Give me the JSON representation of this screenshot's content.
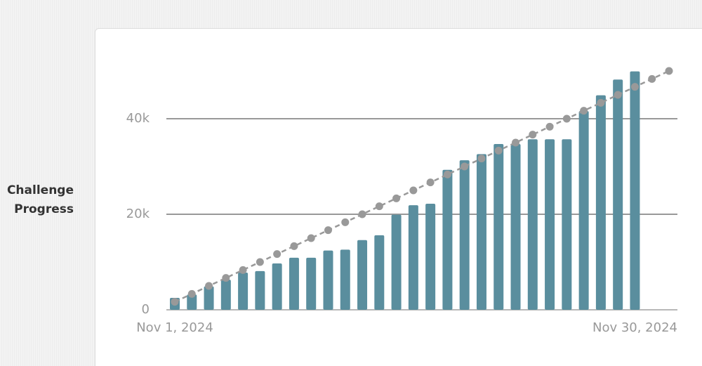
{
  "label": "Challenge Progress",
  "chart_data": {
    "type": "bar",
    "x": [
      "Nov 1, 2024",
      null,
      null,
      null,
      null,
      null,
      null,
      null,
      null,
      null,
      null,
      null,
      null,
      null,
      null,
      null,
      null,
      null,
      null,
      null,
      null,
      null,
      null,
      null,
      null,
      null,
      null,
      null,
      null,
      "Nov 30, 2024"
    ],
    "series": [
      {
        "type": "bar",
        "color": "#5a8e9e",
        "values": [
          2500,
          3200,
          4900,
          6300,
          7800,
          8100,
          9700,
          10900,
          10900,
          12400,
          12600,
          14600,
          15600,
          19900,
          21900,
          22200,
          29300,
          31300,
          32600,
          34700,
          34700,
          35700,
          35700,
          35700,
          41600,
          44900,
          48200,
          49900,
          null,
          null
        ]
      },
      {
        "type": "line",
        "color": "#999999",
        "line_style": "dashed",
        "values": [
          1667,
          3333,
          5000,
          6667,
          8333,
          10000,
          11667,
          13333,
          15000,
          16667,
          18333,
          20000,
          21667,
          23333,
          25000,
          26667,
          28333,
          30000,
          31667,
          33333,
          35000,
          36667,
          38333,
          40000,
          41667,
          43333,
          45000,
          46667,
          48333,
          50000
        ]
      }
    ],
    "ylim": [
      0,
      50000
    ],
    "yticks": [
      0,
      {
        "value": 20000,
        "label": "20k"
      },
      {
        "value": 40000,
        "label": "40k"
      }
    ],
    "grid": true
  }
}
